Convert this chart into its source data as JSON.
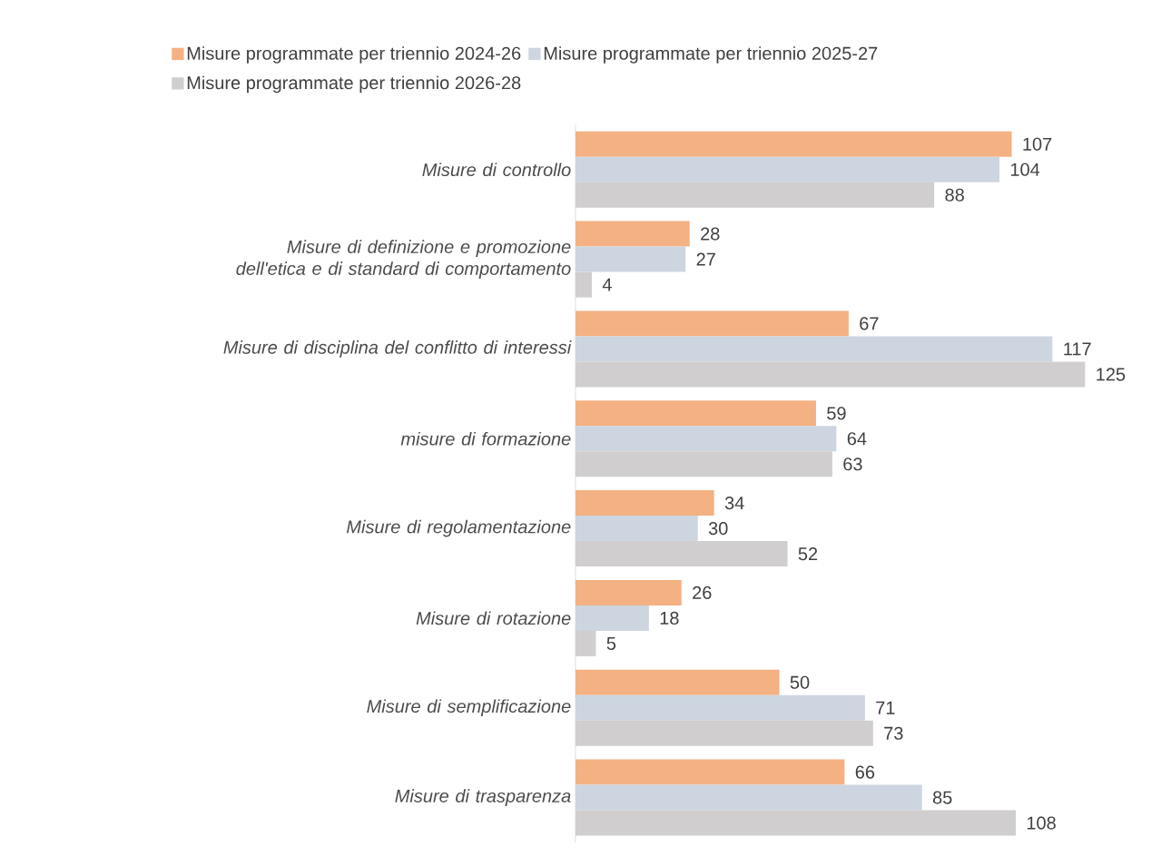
{
  "chart_data": {
    "type": "bar",
    "orientation": "horizontal",
    "categories": [
      "Misure di controllo",
      "Misure di definizione e promozione dell'etica e di standard di comportamento",
      "Misure di disciplina del conflitto di interessi",
      "misure di formazione",
      "Misure di regolamentazione",
      "Misure di rotazione",
      "Misure di semplificazione",
      "Misure di trasparenza"
    ],
    "series": [
      {
        "name": "Misure programmate per triennio 2024-26",
        "color": "#f4b183",
        "values": [
          107,
          28,
          67,
          59,
          34,
          26,
          50,
          66
        ]
      },
      {
        "name": "Misure programmate per triennio 2025-27",
        "color": "#cdd5e0",
        "values": [
          104,
          27,
          117,
          64,
          30,
          18,
          71,
          85
        ]
      },
      {
        "name": "Misure programmate per triennio 2026-28",
        "color": "#d0cece",
        "values": [
          88,
          4,
          125,
          63,
          52,
          5,
          73,
          108
        ]
      }
    ],
    "data_labels": true,
    "legend": "top"
  }
}
